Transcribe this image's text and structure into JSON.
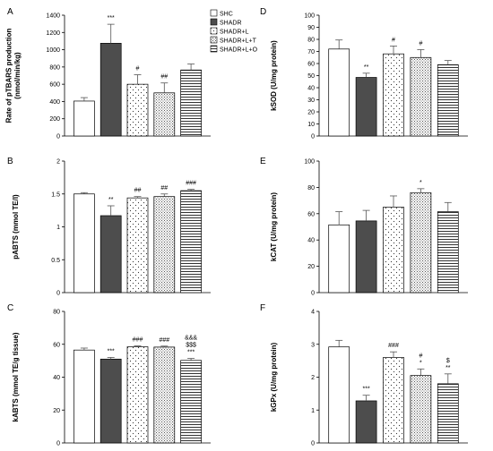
{
  "chart_data": [
    {
      "panel": "A",
      "type": "bar",
      "ylabel": "Rate of pTBARS production (nmol/min/kg)",
      "ylim": [
        0,
        1400
      ],
      "yticks": [
        "0",
        "200",
        "400",
        "600",
        "800",
        "1000",
        "1200",
        "1400"
      ],
      "categories": [
        "SHC",
        "SHADR",
        "SHADR+L",
        "SHADR+L+T",
        "SHADR+L+O"
      ],
      "values": [
        405,
        1075,
        600,
        500,
        765
      ],
      "errors": [
        40,
        220,
        110,
        115,
        70
      ],
      "significance": [
        "",
        "***",
        "#",
        "##",
        ""
      ]
    },
    {
      "panel": "B",
      "type": "bar",
      "ylabel": "pABTS (mmol TE/l)",
      "ylim": [
        0,
        2
      ],
      "yticks": [
        "0",
        "0.5",
        "1",
        "1.5",
        "2"
      ],
      "categories": [
        "SHC",
        "SHADR",
        "SHADR+L",
        "SHADR+L+T",
        "SHADR+L+O"
      ],
      "values": [
        1.5,
        1.17,
        1.44,
        1.46,
        1.55
      ],
      "errors": [
        0.02,
        0.15,
        0.02,
        0.04,
        0.02
      ],
      "significance": [
        "",
        "**",
        "##",
        "##",
        "###"
      ]
    },
    {
      "panel": "C",
      "type": "bar",
      "ylabel": "kABTS (mmol TE/g tissue)",
      "ylim": [
        0,
        80
      ],
      "yticks": [
        "0",
        "20",
        "40",
        "60",
        "80"
      ],
      "categories": [
        "SHC",
        "SHADR",
        "SHADR+L",
        "SHADR+L+T",
        "SHADR+L+O"
      ],
      "values": [
        56.5,
        51,
        58.5,
        58.3,
        50.2
      ],
      "errors": [
        1.2,
        1.0,
        0.5,
        0.6,
        1.2
      ],
      "significance": [
        "",
        "***",
        "###",
        "###",
        "&&&\n$$$\n***"
      ]
    },
    {
      "panel": "D",
      "type": "bar",
      "ylabel": "kSOD (U/mg protein)",
      "ylim": [
        0,
        100
      ],
      "yticks": [
        "0",
        "10",
        "20",
        "30",
        "40",
        "50",
        "60",
        "70",
        "80",
        "90",
        "100"
      ],
      "categories": [
        "SHC",
        "SHADR",
        "SHADR+L",
        "SHADR+L+T",
        "SHADR+L+O"
      ],
      "values": [
        72,
        48.5,
        68,
        65,
        59
      ],
      "errors": [
        7.5,
        3.5,
        6.5,
        6.5,
        3.5
      ],
      "significance": [
        "",
        "**",
        "#",
        "#",
        ""
      ]
    },
    {
      "panel": "E",
      "type": "bar",
      "ylabel": "kCAT (U/mg protein)",
      "ylim": [
        0,
        100
      ],
      "yticks": [
        "0",
        "20",
        "40",
        "60",
        "80",
        "100"
      ],
      "categories": [
        "SHC",
        "SHADR",
        "SHADR+L",
        "SHADR+L+T",
        "SHADR+L+O"
      ],
      "values": [
        51.5,
        54.5,
        65,
        76,
        61.5
      ],
      "errors": [
        10,
        8,
        8.5,
        3,
        7
      ],
      "significance": [
        "",
        "",
        "",
        "*",
        ""
      ]
    },
    {
      "panel": "F",
      "type": "bar",
      "ylabel": "kGPx (U/mg protein)",
      "ylim": [
        0,
        4
      ],
      "yticks": [
        "0",
        "1",
        "2",
        "3",
        "4"
      ],
      "categories": [
        "SHC",
        "SHADR",
        "SHADR+L",
        "SHADR+L+T",
        "SHADR+L+O"
      ],
      "values": [
        2.92,
        1.28,
        2.6,
        2.05,
        1.8
      ],
      "errors": [
        0.2,
        0.17,
        0.17,
        0.2,
        0.3
      ],
      "significance": [
        "",
        "***",
        "###",
        "#\n*",
        "$\n**"
      ]
    }
  ],
  "legend": [
    "SHC",
    "SHADR",
    "SHADR+L",
    "SHADR+L+T",
    "SHADR+L+O"
  ],
  "fill_styles": [
    "white",
    "dark-gray",
    "dots",
    "dense-dots",
    "horizontal-stripes"
  ],
  "colors": {
    "dark_bar": "#4d4d4d",
    "axis": "#000000",
    "error_bar": "#555555"
  }
}
